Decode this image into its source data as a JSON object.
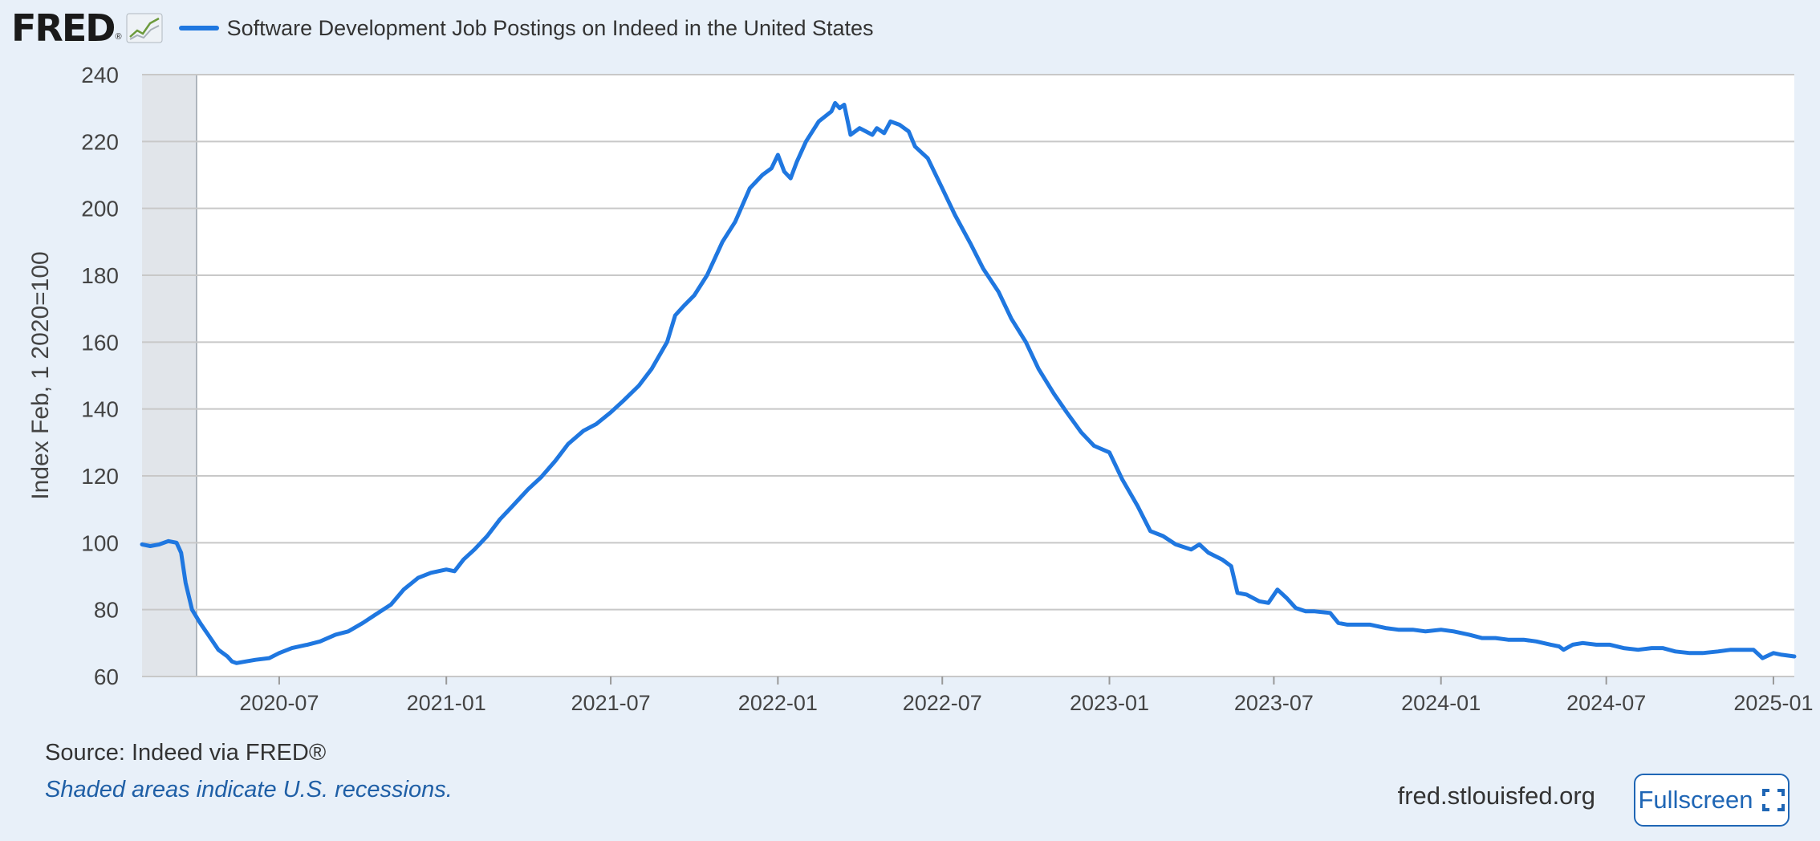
{
  "header": {
    "logo_text": "FRED",
    "logo_reg": "®",
    "legend_label": "Software Development Job Postings on Indeed in the United States"
  },
  "footer": {
    "source": "Source: Indeed via FRED®",
    "recession_note": "Shaded areas indicate U.S. recessions.",
    "url": "fred.stlouisfed.org",
    "fullscreen_label": "Fullscreen"
  },
  "icons": {
    "logo": "fred-graph-icon",
    "fullscreen": "fullscreen-icon"
  },
  "colors": {
    "series": "#1f77e0",
    "recession_shade": "#e1e5ea",
    "grid": "#c8c8c8",
    "plot_bg": "#ffffff",
    "page_bg": "#e8f0f9"
  },
  "chart_data": {
    "type": "line",
    "title": "",
    "xlabel": "",
    "ylabel": "Index Feb, 1 2020=100",
    "ylim": [
      60,
      240
    ],
    "yticks": [
      60,
      80,
      100,
      120,
      140,
      160,
      180,
      200,
      220,
      240
    ],
    "xlim": [
      "2020-02-01",
      "2025-01-24"
    ],
    "xticks": [
      "2020-07",
      "2021-01",
      "2021-07",
      "2022-01",
      "2022-07",
      "2023-01",
      "2023-07",
      "2024-01",
      "2024-07",
      "2025-01"
    ],
    "grid": true,
    "recessions": [
      {
        "start": "2020-02-01",
        "end": "2020-04-01"
      }
    ],
    "series": [
      {
        "name": "Software Development Job Postings on Indeed in the United States",
        "points": [
          [
            "2020-02-01",
            99.5
          ],
          [
            "2020-02-10",
            99.0
          ],
          [
            "2020-02-20",
            99.5
          ],
          [
            "2020-03-01",
            100.5
          ],
          [
            "2020-03-10",
            100.0
          ],
          [
            "2020-03-15",
            97.0
          ],
          [
            "2020-03-20",
            88.0
          ],
          [
            "2020-03-27",
            80.0
          ],
          [
            "2020-04-05",
            76.0
          ],
          [
            "2020-04-15",
            72.0
          ],
          [
            "2020-04-25",
            68.0
          ],
          [
            "2020-05-05",
            66.0
          ],
          [
            "2020-05-10",
            64.5
          ],
          [
            "2020-05-15",
            64.0
          ],
          [
            "2020-05-25",
            64.5
          ],
          [
            "2020-06-05",
            65.0
          ],
          [
            "2020-06-20",
            65.5
          ],
          [
            "2020-07-01",
            67.0
          ],
          [
            "2020-07-15",
            68.5
          ],
          [
            "2020-08-01",
            69.5
          ],
          [
            "2020-08-15",
            70.5
          ],
          [
            "2020-09-01",
            72.5
          ],
          [
            "2020-09-15",
            73.5
          ],
          [
            "2020-10-01",
            76.0
          ],
          [
            "2020-10-15",
            78.5
          ],
          [
            "2020-11-01",
            81.5
          ],
          [
            "2020-11-15",
            86.0
          ],
          [
            "2020-12-01",
            89.5
          ],
          [
            "2020-12-15",
            91.0
          ],
          [
            "2021-01-01",
            92.0
          ],
          [
            "2021-01-10",
            91.5
          ],
          [
            "2021-01-20",
            95.0
          ],
          [
            "2021-02-01",
            98.0
          ],
          [
            "2021-02-15",
            102.0
          ],
          [
            "2021-03-01",
            107.0
          ],
          [
            "2021-03-15",
            111.0
          ],
          [
            "2021-04-01",
            116.0
          ],
          [
            "2021-04-15",
            119.5
          ],
          [
            "2021-05-01",
            124.5
          ],
          [
            "2021-05-15",
            129.5
          ],
          [
            "2021-06-01",
            133.5
          ],
          [
            "2021-06-15",
            135.5
          ],
          [
            "2021-07-01",
            139.0
          ],
          [
            "2021-07-15",
            142.5
          ],
          [
            "2021-08-01",
            147.0
          ],
          [
            "2021-08-15",
            152.0
          ],
          [
            "2021-09-01",
            160.0
          ],
          [
            "2021-09-10",
            168.0
          ],
          [
            "2021-09-20",
            171.0
          ],
          [
            "2021-10-01",
            174.0
          ],
          [
            "2021-10-15",
            180.0
          ],
          [
            "2021-11-01",
            190.0
          ],
          [
            "2021-11-15",
            196.0
          ],
          [
            "2021-12-01",
            206.0
          ],
          [
            "2021-12-15",
            210.0
          ],
          [
            "2021-12-25",
            212.0
          ],
          [
            "2022-01-01",
            216.0
          ],
          [
            "2022-01-08",
            211.0
          ],
          [
            "2022-01-15",
            209.0
          ],
          [
            "2022-01-22",
            214.0
          ],
          [
            "2022-02-01",
            220.0
          ],
          [
            "2022-02-15",
            226.0
          ],
          [
            "2022-03-01",
            229.0
          ],
          [
            "2022-03-05",
            231.5
          ],
          [
            "2022-03-10",
            230.0
          ],
          [
            "2022-03-15",
            231.0
          ],
          [
            "2022-03-22",
            222.0
          ],
          [
            "2022-04-01",
            224.0
          ],
          [
            "2022-04-15",
            222.0
          ],
          [
            "2022-04-20",
            224.0
          ],
          [
            "2022-04-28",
            222.5
          ],
          [
            "2022-05-05",
            226.0
          ],
          [
            "2022-05-15",
            225.0
          ],
          [
            "2022-05-25",
            223.0
          ],
          [
            "2022-06-01",
            218.5
          ],
          [
            "2022-06-15",
            215.0
          ],
          [
            "2022-07-01",
            206.0
          ],
          [
            "2022-07-15",
            198.0
          ],
          [
            "2022-08-01",
            189.5
          ],
          [
            "2022-08-15",
            182.0
          ],
          [
            "2022-09-01",
            175.0
          ],
          [
            "2022-09-15",
            167.0
          ],
          [
            "2022-10-01",
            160.0
          ],
          [
            "2022-10-15",
            152.0
          ],
          [
            "2022-11-01",
            144.5
          ],
          [
            "2022-11-15",
            139.0
          ],
          [
            "2022-12-01",
            133.0
          ],
          [
            "2022-12-15",
            129.0
          ],
          [
            "2023-01-01",
            127.0
          ],
          [
            "2023-01-15",
            119.0
          ],
          [
            "2023-02-01",
            111.0
          ],
          [
            "2023-02-15",
            103.5
          ],
          [
            "2023-03-01",
            102.0
          ],
          [
            "2023-03-15",
            99.5
          ],
          [
            "2023-04-01",
            98.0
          ],
          [
            "2023-04-10",
            99.5
          ],
          [
            "2023-04-20",
            97.0
          ],
          [
            "2023-05-05",
            95.0
          ],
          [
            "2023-05-15",
            93.0
          ],
          [
            "2023-05-22",
            85.0
          ],
          [
            "2023-06-01",
            84.5
          ],
          [
            "2023-06-15",
            82.5
          ],
          [
            "2023-06-25",
            82.0
          ],
          [
            "2023-07-05",
            86.0
          ],
          [
            "2023-07-15",
            83.5
          ],
          [
            "2023-07-25",
            80.5
          ],
          [
            "2023-08-05",
            79.5
          ],
          [
            "2023-08-15",
            79.5
          ],
          [
            "2023-09-01",
            79.0
          ],
          [
            "2023-09-10",
            76.0
          ],
          [
            "2023-09-20",
            75.5
          ],
          [
            "2023-10-15",
            75.5
          ],
          [
            "2023-11-01",
            74.5
          ],
          [
            "2023-11-15",
            74.0
          ],
          [
            "2023-12-01",
            74.0
          ],
          [
            "2023-12-15",
            73.5
          ],
          [
            "2024-01-01",
            74.0
          ],
          [
            "2024-01-15",
            73.5
          ],
          [
            "2024-02-01",
            72.5
          ],
          [
            "2024-02-15",
            71.5
          ],
          [
            "2024-03-01",
            71.5
          ],
          [
            "2024-03-15",
            71.0
          ],
          [
            "2024-04-01",
            71.0
          ],
          [
            "2024-04-15",
            70.5
          ],
          [
            "2024-05-01",
            69.5
          ],
          [
            "2024-05-10",
            69.0
          ],
          [
            "2024-05-15",
            68.0
          ],
          [
            "2024-05-25",
            69.5
          ],
          [
            "2024-06-05",
            70.0
          ],
          [
            "2024-06-20",
            69.5
          ],
          [
            "2024-07-05",
            69.5
          ],
          [
            "2024-07-20",
            68.5
          ],
          [
            "2024-08-05",
            68.0
          ],
          [
            "2024-08-20",
            68.5
          ],
          [
            "2024-09-01",
            68.5
          ],
          [
            "2024-09-15",
            67.5
          ],
          [
            "2024-10-01",
            67.0
          ],
          [
            "2024-10-15",
            67.0
          ],
          [
            "2024-11-01",
            67.5
          ],
          [
            "2024-11-15",
            68.0
          ],
          [
            "2024-12-01",
            68.0
          ],
          [
            "2024-12-10",
            68.0
          ],
          [
            "2024-12-20",
            65.5
          ],
          [
            "2025-01-01",
            67.0
          ],
          [
            "2025-01-10",
            66.5
          ],
          [
            "2025-01-24",
            66.0
          ]
        ]
      }
    ]
  }
}
